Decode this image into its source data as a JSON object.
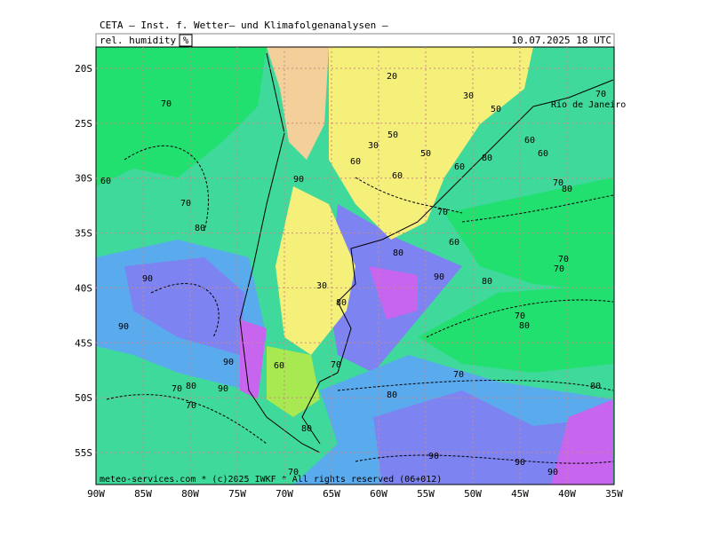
{
  "header": {
    "title": "CETA — Inst. f. Wetter— und Klimafolgenanalysen —",
    "variable": "rel. humidity",
    "unit": "%",
    "valid": "10.07.2025 18 UTC"
  },
  "map": {
    "lon_labels": [
      "90W",
      "85W",
      "80W",
      "75W",
      "70W",
      "65W",
      "60W",
      "55W",
      "50W",
      "45W",
      "40W",
      "35W"
    ],
    "lat_labels": [
      "20S",
      "25S",
      "30S",
      "35S",
      "40S",
      "45S",
      "50S",
      "55S"
    ],
    "place": "Rio de Janeiro",
    "contour_labels": [
      "20",
      "30",
      "50",
      "70",
      "70",
      "50",
      "30",
      "60",
      "60",
      "60",
      "80",
      "50",
      "60",
      "60",
      "90",
      "60",
      "70",
      "80",
      "70",
      "80",
      "70",
      "60",
      "80",
      "70",
      "70",
      "90",
      "90",
      "80",
      "30",
      "80",
      "70",
      "80",
      "90",
      "90",
      "60",
      "70",
      "70",
      "80",
      "70",
      "90",
      "80",
      "80",
      "70",
      "80",
      "90",
      "90",
      "90",
      "70"
    ]
  },
  "footer": "meteo-services.com * (c)2025 IWKF * All rights reserved (06+012)"
}
